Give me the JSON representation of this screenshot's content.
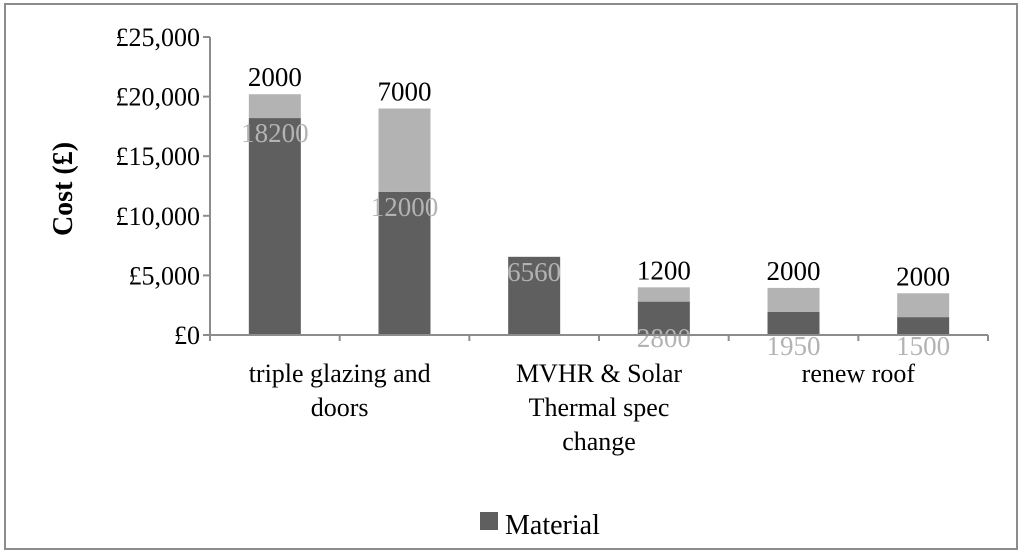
{
  "chart_data": {
    "type": "bar",
    "stacked": true,
    "ylabel": "Cost (£)",
    "ylim": [
      0,
      25000
    ],
    "yticks": [
      "£0",
      "£5,000",
      "£10,000",
      "£15,000",
      "£20,000",
      "£25,000"
    ],
    "ytick_values": [
      0,
      5000,
      10000,
      15000,
      20000,
      25000
    ],
    "categories": [
      "triple glazing and doors",
      "",
      "MVHR & Solar Thermal spec change",
      "",
      "renew roof",
      ""
    ],
    "category_label_lines": [
      [
        "triple glazing and",
        "doors"
      ],
      [],
      [
        "MVHR & Solar",
        "Thermal spec",
        "change"
      ],
      [],
      [
        "renew roof"
      ],
      []
    ],
    "series": [
      {
        "name": "Material",
        "values": [
          18200,
          12000,
          6560,
          2800,
          1950,
          1500
        ],
        "color": "#5f5f5f",
        "label_color": "#b3b3b3"
      },
      {
        "values": [
          2000,
          7000,
          null,
          1200,
          2000,
          2000
        ],
        "color": "#b3b3b3",
        "label_color": "#000000"
      }
    ],
    "bar_labels": {
      "bottom": [
        "18200",
        "12000",
        "6560",
        "2800",
        "1950",
        "1500"
      ],
      "top": [
        "2000",
        "7000",
        "",
        "1200",
        "2000",
        "2000"
      ]
    },
    "grid": false,
    "legend": {
      "position": "bottom",
      "entries": [
        "Material"
      ]
    }
  }
}
